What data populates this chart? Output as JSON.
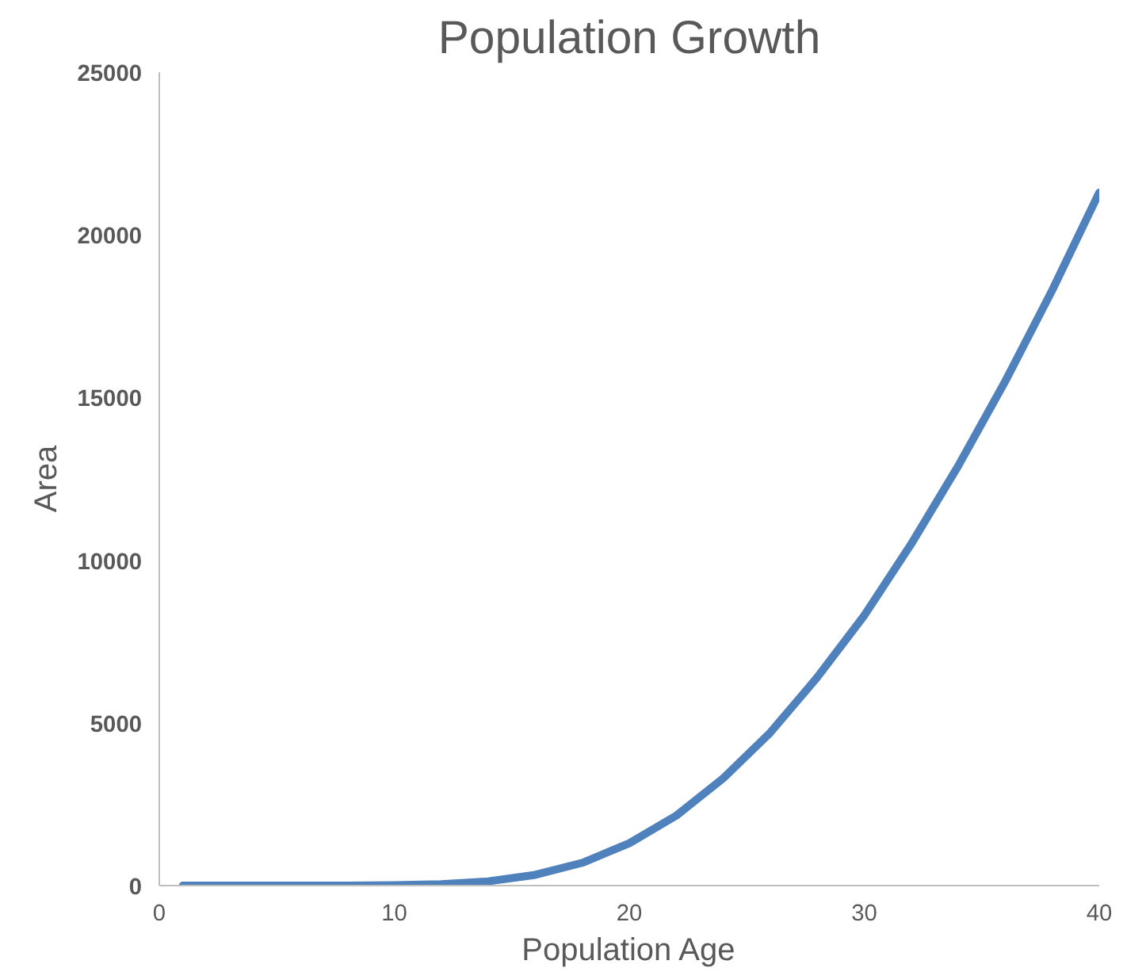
{
  "chart_data": {
    "type": "line",
    "title": "Population Growth",
    "xlabel": "Population Age",
    "ylabel": "Area",
    "x": [
      1,
      4,
      8,
      10,
      12,
      14,
      16,
      18,
      20,
      22,
      24,
      26,
      28,
      30,
      32,
      34,
      36,
      38,
      40
    ],
    "series": [
      {
        "color": "#4f81bd",
        "values": [
          0,
          0,
          0,
          10,
          40,
          130,
          330,
          700,
          1300,
          2150,
          3300,
          4700,
          6400,
          8300,
          10500,
          12900,
          15500,
          18300,
          21300
        ]
      }
    ],
    "xlim": [
      0,
      40
    ],
    "xticks": [
      0,
      10,
      20,
      30,
      40
    ],
    "ylim": [
      0,
      25000
    ],
    "yticks": [
      0,
      5000,
      10000,
      15000,
      20000,
      25000
    ],
    "grid": false,
    "marker": "none",
    "line_style": "solid"
  }
}
